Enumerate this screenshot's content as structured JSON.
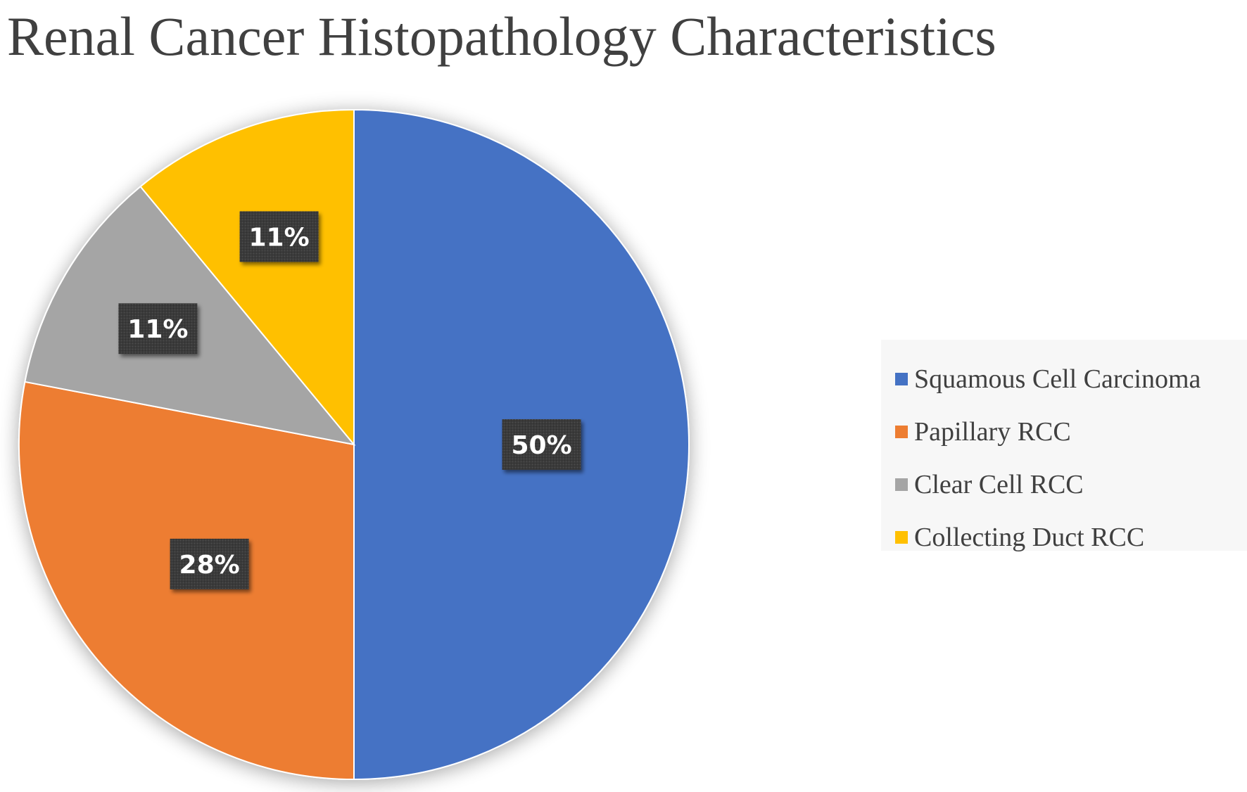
{
  "chart_data": {
    "type": "pie",
    "title": "Renal Cancer Histopathology Characteristics",
    "start_angle_deg": 0,
    "direction": "clockwise",
    "legend_position": "right",
    "slices": [
      {
        "name": "Squamous Cell Carcinoma",
        "value": 50,
        "label": "50%",
        "color": "#4472C4"
      },
      {
        "name": "Papillary RCC",
        "value": 28,
        "label": "28%",
        "color": "#ED7D31"
      },
      {
        "name": "Clear Cell RCC",
        "value": 11,
        "label": "11%",
        "color": "#A5A5A5"
      },
      {
        "name": "Collecting Duct RCC",
        "value": 11,
        "label": "11%",
        "color": "#FFC000"
      }
    ]
  }
}
